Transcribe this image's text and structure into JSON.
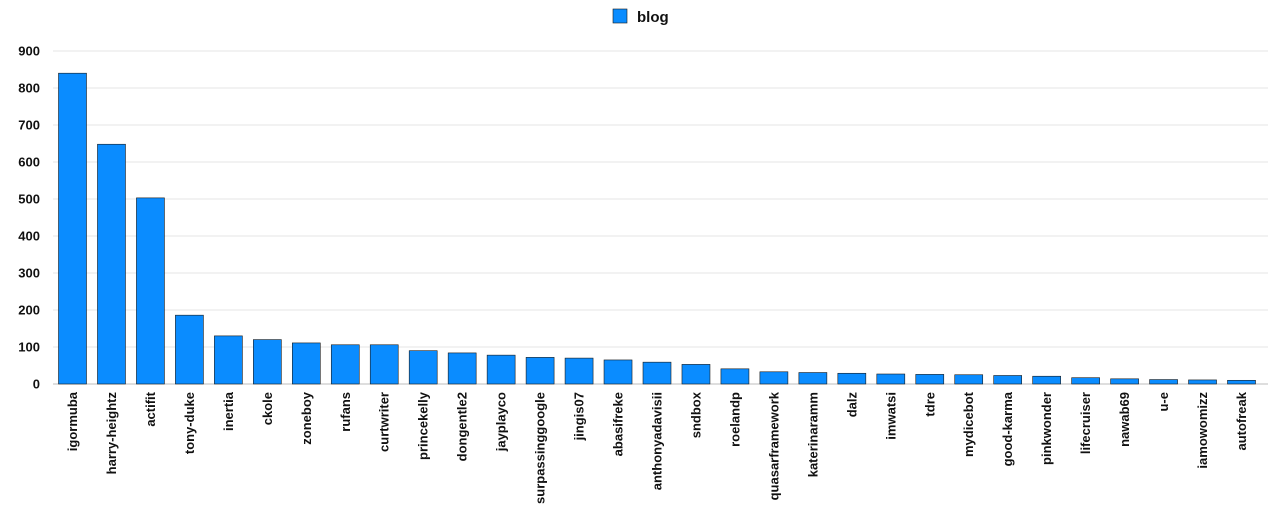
{
  "chart_data": {
    "type": "bar",
    "categories": [
      "igormuba",
      "harry-heightz",
      "actifit",
      "tony-duke",
      "inertia",
      "ckole",
      "zoneboy",
      "rufans",
      "curtwriter",
      "princekelly",
      "dongentle2",
      "jayplayco",
      "surpassinggoogle",
      "jingis07",
      "abasifreke",
      "anthonyadavisii",
      "sndbox",
      "roelandp",
      "quasarframework",
      "katerinaramm",
      "dalz",
      "imwatsi",
      "tdre",
      "mydicebot",
      "good-karma",
      "pinkwonder",
      "lifecruiser",
      "nawab69",
      "u-e",
      "iamowomizz",
      "autofreak"
    ],
    "series": [
      {
        "name": "blog",
        "color": "#0a8cff",
        "values": [
          840,
          648,
          503,
          186,
          130,
          120,
          111,
          106,
          106,
          90,
          84,
          78,
          72,
          70,
          65,
          59,
          53,
          41,
          33,
          31,
          29,
          27,
          26,
          25,
          23,
          21,
          17,
          14,
          12,
          11,
          10
        ]
      }
    ],
    "yticks": [
      "0",
      "100",
      "200",
      "300",
      "400",
      "500",
      "600",
      "700",
      "800",
      "900"
    ],
    "ylim": [
      0,
      900
    ],
    "grid": true,
    "legend_position": "top-center"
  }
}
